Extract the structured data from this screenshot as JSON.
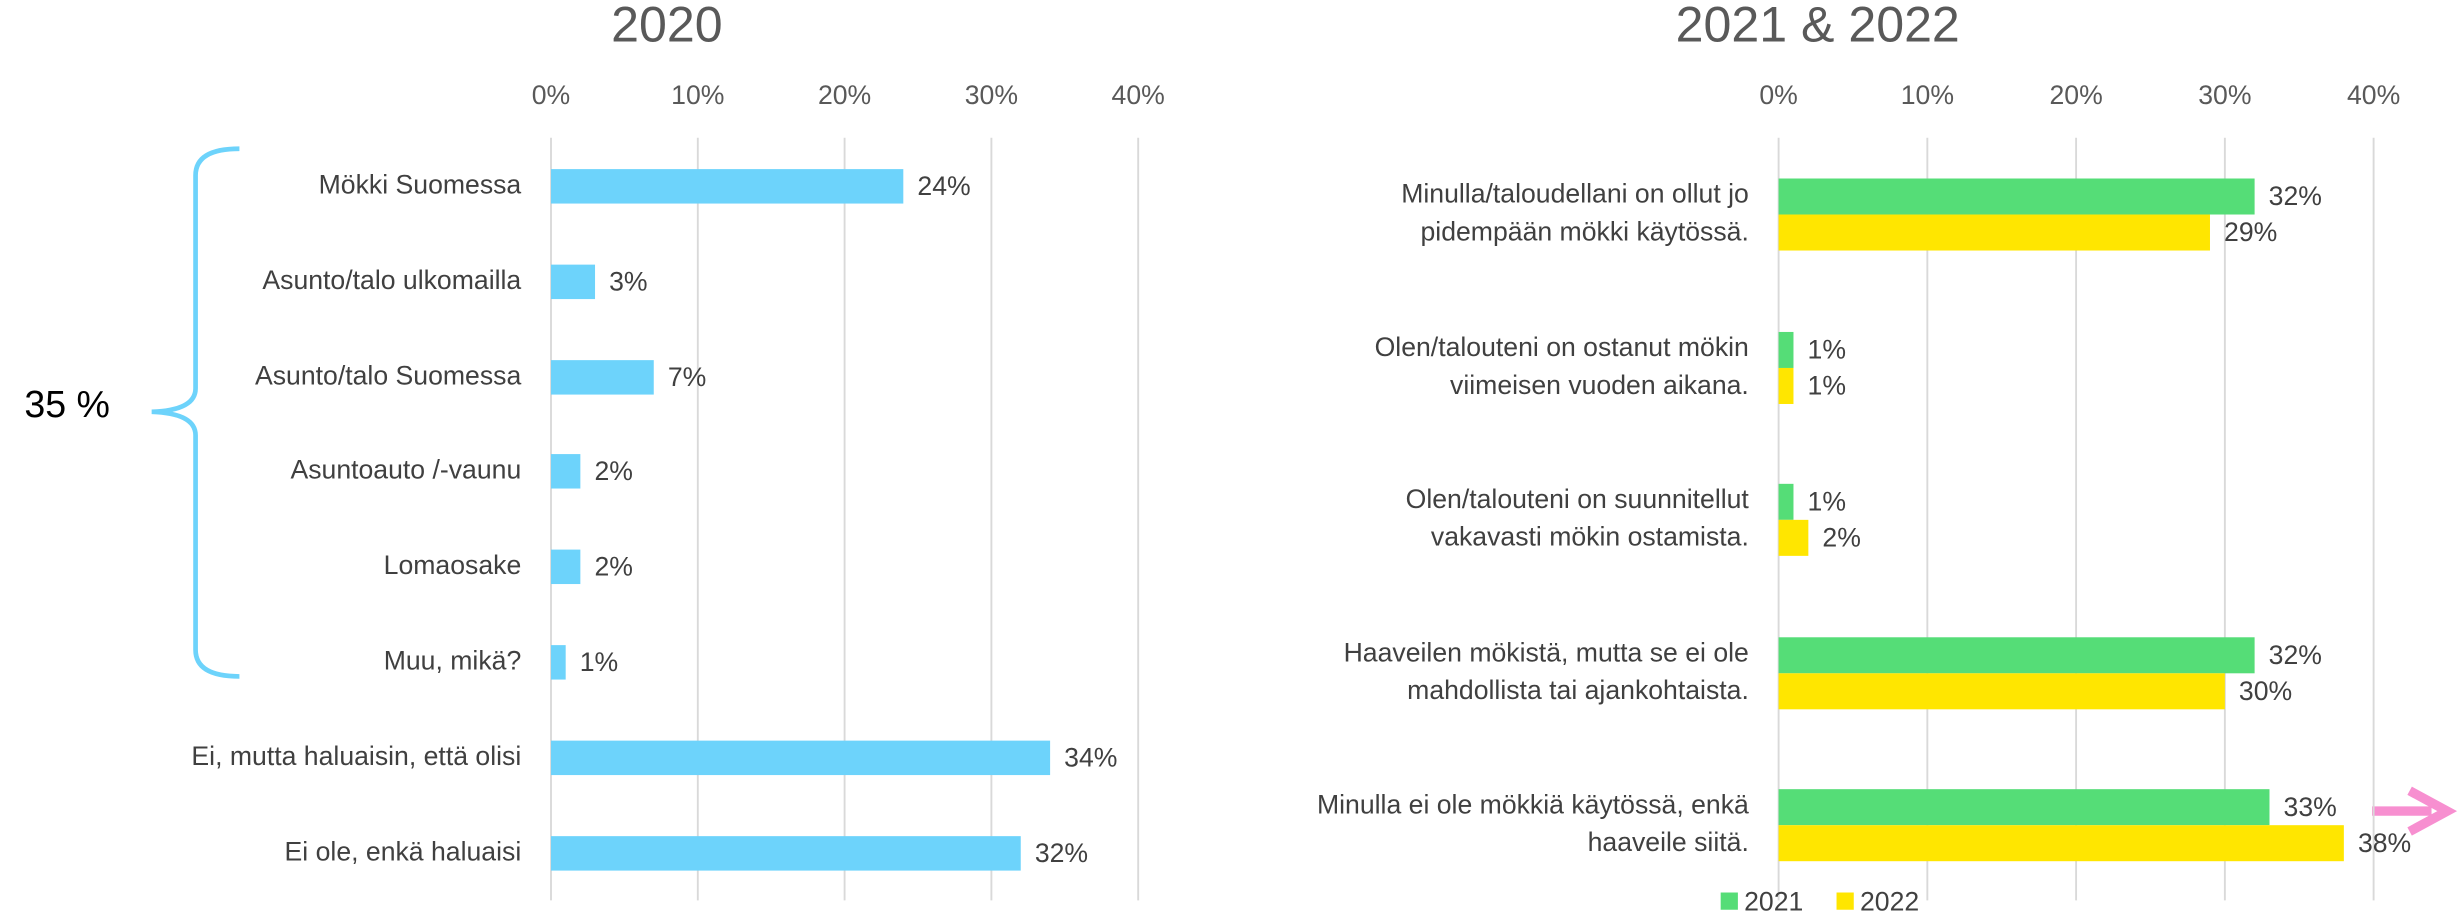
{
  "chart_data": [
    {
      "type": "bar",
      "orientation": "horizontal",
      "title": "2020",
      "categories": [
        "Mökki Suomessa",
        "Asunto/talo ulkomailla",
        "Asunto/talo Suomessa",
        "Asuntoauto /-vaunu",
        "Lomaosake",
        "Muu, mikä?",
        "Ei, mutta haluaisin, että olisi",
        "Ei ole, enkä haluaisi"
      ],
      "values": [
        24,
        3,
        7,
        2,
        2,
        1,
        34,
        32
      ],
      "value_labels": [
        "24%",
        "3%",
        "7%",
        "2%",
        "2%",
        "1%",
        "34%",
        "32%"
      ],
      "color": "#6dd3fb",
      "xlim": [
        0,
        40
      ],
      "xticks": [
        {
          "value": 0,
          "label": "0%"
        },
        {
          "value": 10,
          "label": "10%"
        },
        {
          "value": 20,
          "label": "20%"
        },
        {
          "value": 30,
          "label": "30%"
        },
        {
          "value": 40,
          "label": "40%"
        }
      ],
      "grid": true,
      "annotation": "35 %"
    },
    {
      "type": "bar",
      "orientation": "horizontal",
      "title": "2021 & 2022",
      "categories": [
        "Minulla/taloudellani on ollut jo\npidempään mökki käytössä.",
        "Olen/talouteni on ostanut mökin\nviimeisen vuoden aikana.",
        "Olen/talouteni on suunnitellut\nvakavasti mökin ostamista.",
        "Haaveilen mökistä, mutta se ei ole\nmahdollista tai ajankohtaista.",
        "Minulla ei ole mökkiä käytössä, enkä\nhaaveile siitä."
      ],
      "series": [
        {
          "name": "2021",
          "color": "#55dd77",
          "values": [
            32,
            1,
            1,
            32,
            33
          ],
          "value_labels": [
            "32%",
            "1%",
            "1%",
            "32%",
            "33%"
          ]
        },
        {
          "name": "2022",
          "color": "#ffe600",
          "values": [
            29,
            1,
            2,
            30,
            38
          ],
          "value_labels": [
            "29%",
            "1%",
            "2%",
            "30%",
            "38%"
          ]
        }
      ],
      "xlim": [
        0,
        40
      ],
      "xticks": [
        {
          "value": 0,
          "label": "0%"
        },
        {
          "value": 10,
          "label": "10%"
        },
        {
          "value": 20,
          "label": "20%"
        },
        {
          "value": 30,
          "label": "30%"
        },
        {
          "value": 40,
          "label": "40%"
        }
      ],
      "grid": true,
      "legend": "bottom"
    }
  ]
}
